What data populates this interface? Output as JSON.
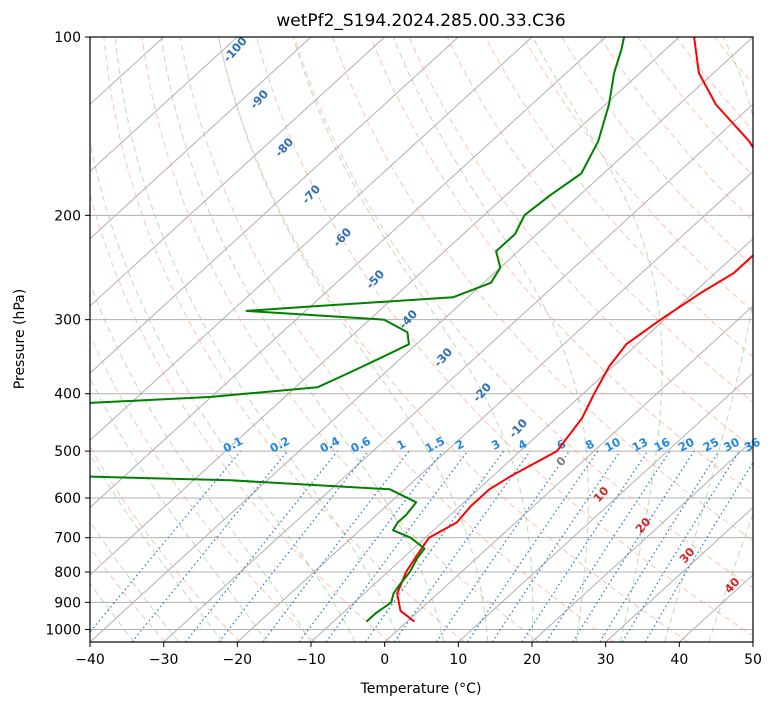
{
  "chart_data": {
    "type": "line",
    "subtype": "skew-T log-P diagram",
    "title": "wetPf2_S194.2024.285.00.33.C36",
    "xlabel": "Temperature (°C)",
    "ylabel": "Pressure (hPa)",
    "xlim": [
      -40,
      50
    ],
    "ylim": [
      1050,
      100
    ],
    "y_scale": "log",
    "x_ticks": [
      -40,
      -30,
      -20,
      -10,
      0,
      10,
      20,
      30,
      40,
      50
    ],
    "x_tick_labels": [
      "−40",
      "−30",
      "−20",
      "−10",
      "0",
      "10",
      "20",
      "30",
      "40",
      "50"
    ],
    "y_ticks": [
      1000,
      900,
      800,
      700,
      600,
      500,
      400,
      300,
      200,
      100
    ],
    "y_tick_labels": [
      "1000",
      "900",
      "800",
      "700",
      "600",
      "500",
      "400",
      "300",
      "200",
      "100"
    ],
    "grid": true,
    "dry_adiabat_labels": [
      "-100",
      "-90",
      "-80",
      "-70",
      "-60",
      "-50",
      "-40",
      "-30",
      "-20",
      "-10"
    ],
    "moist_adiabat_labels": [
      "0",
      "10",
      "20",
      "30",
      "40"
    ],
    "mixing_ratio_labels": [
      "0.1",
      "0.2",
      "0.4",
      "0.6",
      "1",
      "1.5",
      "2",
      "3",
      "4",
      "6",
      "8",
      "10",
      "13",
      "16",
      "20",
      "25",
      "30",
      "36"
    ],
    "series": [
      {
        "color": "#ff0000",
        "points": [
          [
            970,
            1.0
          ],
          [
            930,
            -2.5
          ],
          [
            870,
            -5.5
          ],
          [
            800,
            -7.5
          ],
          [
            750,
            -8.5
          ],
          [
            700,
            -9.5
          ],
          [
            660,
            -8.0
          ],
          [
            620,
            -8.5
          ],
          [
            580,
            -8.5
          ],
          [
            550,
            -7.5
          ],
          [
            500,
            -5.0
          ],
          [
            440,
            -6.5
          ],
          [
            400,
            -8.5
          ],
          [
            360,
            -10.5
          ],
          [
            330,
            -11.5
          ],
          [
            300,
            -10.5
          ],
          [
            270,
            -9.0
          ],
          [
            250,
            -7.5
          ],
          [
            230,
            -7.5
          ],
          [
            210,
            -9.0
          ],
          [
            190,
            -12.5
          ],
          [
            170,
            -17.5
          ],
          [
            150,
            -25.0
          ],
          [
            130,
            -35.0
          ],
          [
            115,
            -42.0
          ],
          [
            100,
            -48.0
          ]
        ]
      },
      {
        "color": "#008000",
        "points": [
          [
            970,
            -5.5
          ],
          [
            940,
            -5.5
          ],
          [
            900,
            -5.0
          ],
          [
            870,
            -6.0
          ],
          [
            840,
            -6.5
          ],
          [
            800,
            -7.0
          ],
          [
            760,
            -8.0
          ],
          [
            730,
            -8.5
          ],
          [
            700,
            -12.0
          ],
          [
            680,
            -15.5
          ],
          [
            660,
            -16.0
          ],
          [
            640,
            -16.0
          ],
          [
            610,
            -16.5
          ],
          [
            580,
            -22.0
          ],
          [
            560,
            -45.0
          ],
          [
            550,
            -70.0
          ],
          [
            420,
            -84.0
          ],
          [
            405,
            -60.0
          ],
          [
            390,
            -47.0
          ],
          [
            370,
            -45.0
          ],
          [
            350,
            -43.0
          ],
          [
            330,
            -41.0
          ],
          [
            315,
            -43.0
          ],
          [
            300,
            -48.0
          ],
          [
            290,
            -68.0
          ],
          [
            285,
            -60.0
          ],
          [
            275,
            -42.0
          ],
          [
            260,
            -39.0
          ],
          [
            245,
            -40.0
          ],
          [
            230,
            -43.0
          ],
          [
            215,
            -43.0
          ],
          [
            200,
            -44.5
          ],
          [
            185,
            -44.0
          ],
          [
            170,
            -43.0
          ],
          [
            150,
            -45.5
          ],
          [
            130,
            -49.5
          ],
          [
            115,
            -53.5
          ],
          [
            105,
            -56.0
          ],
          [
            100,
            -57.5
          ]
        ]
      }
    ]
  }
}
